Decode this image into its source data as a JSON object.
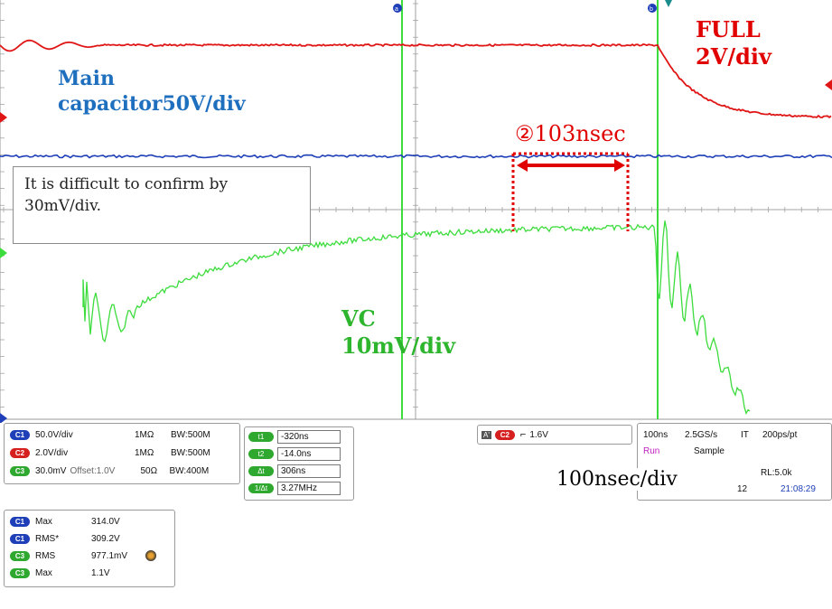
{
  "annotations": {
    "main_line1": "Main",
    "main_line2": "capacitor50V/div",
    "full_line1": "FULL",
    "full_line2": "2V/div",
    "vc_line1": "VC",
    "vc_line2": "10mV/div",
    "measurement": "②103nsec",
    "note": "It is difficult to confirm by\n30mV/div.",
    "time_div": "100nsec/div"
  },
  "cursor_markers": {
    "a": "a",
    "b": "b"
  },
  "channels": [
    {
      "id": "C1",
      "scale": "50.0V/div",
      "offset": "",
      "impedance": "1MΩ",
      "bw": "BW:500M",
      "color": "#1e3fb8"
    },
    {
      "id": "C2",
      "scale": "2.0V/div",
      "offset": "",
      "impedance": "1MΩ",
      "bw": "BW:500M",
      "color": "#d62020"
    },
    {
      "id": "C3",
      "scale": "30.0mV",
      "offset": "Offset:1.0V",
      "impedance": "50Ω",
      "bw": "BW:400M",
      "color": "#2fa82f"
    }
  ],
  "cursors": [
    {
      "label": "t1",
      "value": "-320ns"
    },
    {
      "label": "t2",
      "value": "-14.0ns"
    },
    {
      "label": "Δt",
      "value": "306ns"
    },
    {
      "label": "1/Δt",
      "value": "3.27MHz"
    }
  ],
  "trigger": {
    "mode": "A'",
    "channel": "C2",
    "slope_icon": "rising-edge-icon",
    "level": "1.6V"
  },
  "timebase": {
    "scale": "100ns",
    "rate": "2.5GS/s",
    "it": "IT",
    "res": "200ps/pt",
    "run": "Run",
    "acq": "Sample",
    "rl": "RL:5.0k",
    "frame": "12",
    "time": "21:08:29"
  },
  "measurements": [
    {
      "ch": "C1",
      "name": "Max",
      "value": "314.0V"
    },
    {
      "ch": "C1",
      "name": "RMS*",
      "value": "309.2V"
    },
    {
      "ch": "C3",
      "name": "RMS",
      "value": "977.1mV"
    },
    {
      "ch": "C3",
      "name": "Max",
      "value": "1.1V"
    }
  ],
  "colors": {
    "ch1": "#1e3fb8",
    "ch2": "#e01515",
    "ch3": "#3ddc3d",
    "annot_blue": "#1f6fbf",
    "annot_red": "#e00000"
  }
}
